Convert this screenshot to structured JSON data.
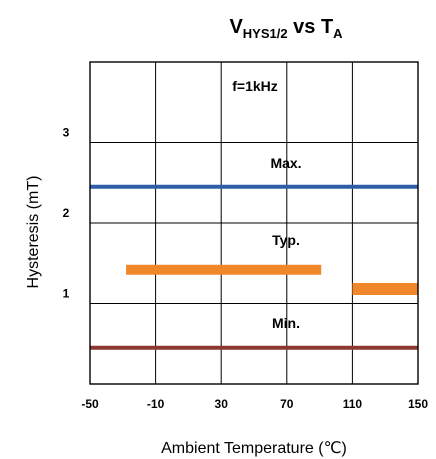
{
  "chart_data": {
    "type": "line",
    "title": {
      "main": "V",
      "subscript": "HYS1/2",
      "middle": " vs T",
      "subscript2": "A"
    },
    "xlabel": "Ambient Temperature (℃)",
    "ylabel": "Hysteresis (mT)",
    "xlim": [
      -50,
      150
    ],
    "ylim": [
      0,
      4
    ],
    "x_ticks": [
      -50,
      -10,
      30,
      70,
      110,
      150
    ],
    "x_tick_labels": [
      "-50",
      "-10",
      "30",
      "70",
      "110",
      "150"
    ],
    "y_ticks": [
      1,
      2,
      3
    ],
    "y_tick_labels": [
      "1",
      "2",
      "3"
    ],
    "grid": true,
    "annotations": {
      "frequency": "f=1kHz",
      "max": "Max.",
      "typ": "Typ.",
      "min": "Min."
    },
    "series": [
      {
        "name": "Max.",
        "color": "#2e5ea8",
        "segments": [
          {
            "x": [
              -50,
              150
            ],
            "y": [
              2.45,
              2.45
            ]
          }
        ]
      },
      {
        "name": "Typ.",
        "color": "#f0882b",
        "segments": [
          {
            "x": [
              -28,
              91
            ],
            "y": [
              1.42,
              1.42
            ]
          },
          {
            "x": [
              110,
              150
            ],
            "y": [
              1.18,
              1.18
            ]
          }
        ]
      },
      {
        "name": "Min.",
        "color": "#8b3a30",
        "segments": [
          {
            "x": [
              -50,
              150
            ],
            "y": [
              0.45,
              0.45
            ]
          }
        ]
      }
    ]
  }
}
